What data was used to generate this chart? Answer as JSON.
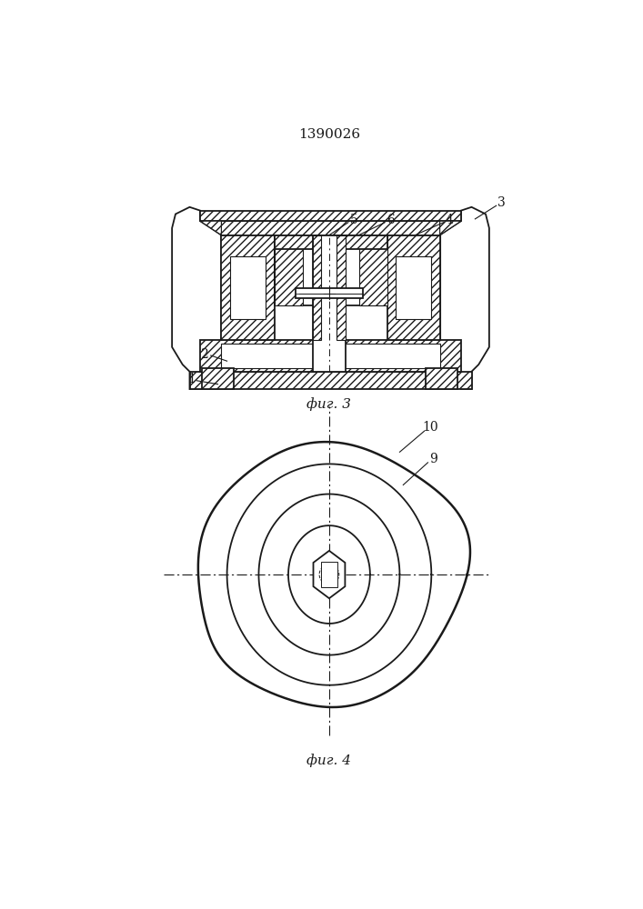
{
  "title": "1390026",
  "fig3_label": "фиг. 3",
  "fig4_label": "фиг. 4",
  "bg_color": "#ffffff",
  "line_color": "#1a1a1a",
  "hatch": "////",
  "lw_main": 1.3,
  "lw_thick": 1.8,
  "lw_thin": 0.8
}
